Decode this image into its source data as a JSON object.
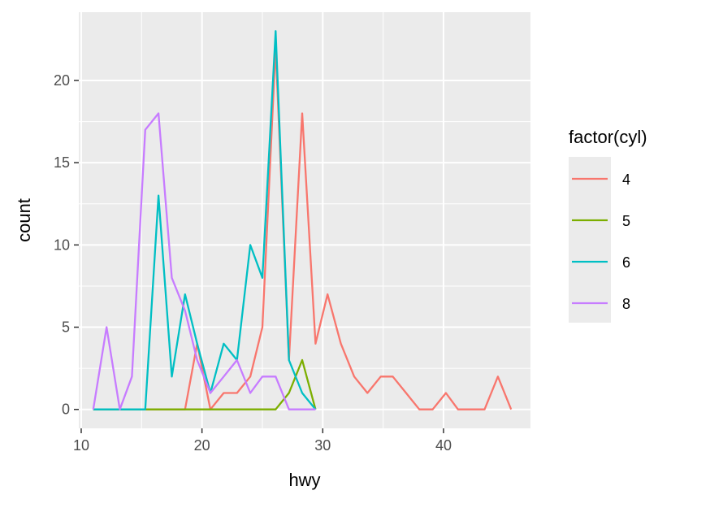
{
  "chart_data": {
    "type": "line",
    "title": "",
    "xlabel": "hwy",
    "ylabel": "count",
    "xlim": [
      9.8,
      47.2
    ],
    "ylim": [
      -1.15,
      24.15
    ],
    "x_ticks": [
      10,
      20,
      30,
      40
    ],
    "y_ticks": [
      0,
      5,
      10,
      15,
      20
    ],
    "x_tick_labels": [
      "10",
      "20",
      "30",
      "40"
    ],
    "y_tick_labels": [
      "0",
      "5",
      "10",
      "15",
      "20"
    ],
    "grid": true,
    "legend": {
      "title": "factor(cyl)",
      "placement": "right"
    },
    "series": [
      {
        "name": "4",
        "color": "#F8766D",
        "x": [
          11.0,
          12.1,
          13.2,
          14.2,
          15.3,
          16.4,
          17.5,
          18.6,
          19.6,
          20.7,
          21.8,
          22.9,
          24.0,
          25.0,
          26.1,
          27.2,
          28.3,
          29.4,
          30.4,
          31.5,
          32.6,
          33.7,
          34.8,
          35.8,
          36.9,
          38.0,
          39.1,
          40.2,
          41.2,
          42.3,
          43.4,
          44.5,
          45.6
        ],
        "values": [
          0,
          0,
          0,
          0,
          0,
          0,
          0,
          0,
          4,
          0,
          1,
          1,
          2,
          5,
          22,
          3,
          18,
          4,
          7,
          4,
          2,
          1,
          2,
          2,
          1,
          0,
          0,
          1,
          0,
          0,
          0,
          2,
          0
        ]
      },
      {
        "name": "5",
        "color": "#7CAE00",
        "x": [
          11.0,
          12.1,
          13.2,
          14.2,
          15.3,
          16.4,
          17.5,
          18.6,
          19.6,
          20.7,
          21.8,
          22.9,
          24.0,
          25.0,
          26.1,
          27.2,
          28.3,
          29.4
        ],
        "values": [
          0,
          0,
          0,
          0,
          0,
          0,
          0,
          0,
          0,
          0,
          0,
          0,
          0,
          0,
          0,
          1,
          3,
          0
        ]
      },
      {
        "name": "6",
        "color": "#00BFC4",
        "x": [
          11.0,
          12.1,
          13.2,
          14.2,
          15.3,
          16.4,
          17.5,
          18.6,
          19.6,
          20.7,
          21.8,
          22.9,
          24.0,
          25.0,
          26.1,
          27.2,
          28.3,
          29.4
        ],
        "values": [
          0,
          0,
          0,
          0,
          0,
          13,
          2,
          7,
          4,
          1,
          4,
          3,
          10,
          8,
          23,
          3,
          1,
          0
        ]
      },
      {
        "name": "8",
        "color": "#C77CFF",
        "x": [
          11.0,
          12.1,
          13.2,
          14.2,
          15.3,
          16.4,
          17.5,
          18.6,
          19.6,
          20.7,
          21.8,
          22.9,
          24.0,
          25.0,
          26.1,
          27.2,
          28.3,
          29.4
        ],
        "values": [
          0,
          5,
          0,
          2,
          17,
          18,
          8,
          6,
          3,
          1,
          2,
          3,
          1,
          2,
          2,
          0,
          0,
          0
        ]
      }
    ]
  }
}
